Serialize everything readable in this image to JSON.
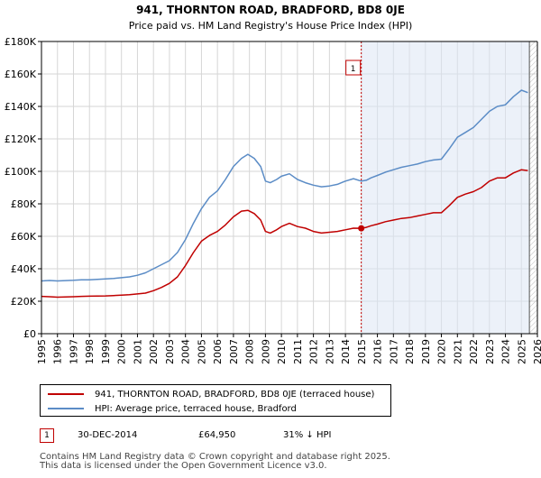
{
  "chart_data": {
    "type": "line",
    "title": "941, THORNTON ROAD, BRADFORD, BD8 0JE",
    "subtitle": "Price paid vs. HM Land Registry's House Price Index (HPI)",
    "xlim": [
      1995,
      2026
    ],
    "ylim": [
      0,
      180000
    ],
    "x_ticks": [
      "1995",
      "1996",
      "1997",
      "1998",
      "1999",
      "2000",
      "2001",
      "2002",
      "2003",
      "2004",
      "2005",
      "2006",
      "2007",
      "2008",
      "2009",
      "2010",
      "2011",
      "2012",
      "2013",
      "2014",
      "2015",
      "2016",
      "2017",
      "2018",
      "2019",
      "2020",
      "2021",
      "2022",
      "2023",
      "2024",
      "2025",
      "2026"
    ],
    "y_ticks": [
      {
        "value": 0,
        "label": "£0"
      },
      {
        "value": 20000,
        "label": "£20K"
      },
      {
        "value": 40000,
        "label": "£40K"
      },
      {
        "value": 60000,
        "label": "£60K"
      },
      {
        "value": 80000,
        "label": "£80K"
      },
      {
        "value": 100000,
        "label": "£100K"
      },
      {
        "value": 120000,
        "label": "£120K"
      },
      {
        "value": 140000,
        "label": "£140K"
      },
      {
        "value": 160000,
        "label": "£160K"
      },
      {
        "value": 180000,
        "label": "£180K"
      }
    ],
    "grid": true,
    "shaded_from": 2015,
    "hatched_from": 2025.5,
    "sale_marker": {
      "x": 2014.99,
      "label": "1",
      "value": 64950
    },
    "series": [
      {
        "name": "941, THORNTON ROAD, BRADFORD, BD8 0JE (terraced house)",
        "color": "#c00000",
        "points": [
          [
            1995,
            23000
          ],
          [
            1995.5,
            22800
          ],
          [
            1996,
            22500
          ],
          [
            1996.5,
            22600
          ],
          [
            1997,
            22800
          ],
          [
            1997.5,
            23000
          ],
          [
            1998,
            23100
          ],
          [
            1998.5,
            23200
          ],
          [
            1999,
            23300
          ],
          [
            1999.5,
            23500
          ],
          [
            2000,
            23800
          ],
          [
            2000.5,
            24000
          ],
          [
            2001,
            24500
          ],
          [
            2001.5,
            25000
          ],
          [
            2002,
            26500
          ],
          [
            2002.5,
            28500
          ],
          [
            2003,
            31000
          ],
          [
            2003.5,
            35000
          ],
          [
            2004,
            42000
          ],
          [
            2004.5,
            50000
          ],
          [
            2005,
            57000
          ],
          [
            2005.5,
            60500
          ],
          [
            2006,
            63000
          ],
          [
            2006.5,
            67000
          ],
          [
            2007,
            72000
          ],
          [
            2007.5,
            75500
          ],
          [
            2007.9,
            76000
          ],
          [
            2008.3,
            74000
          ],
          [
            2008.7,
            70000
          ],
          [
            2009,
            63000
          ],
          [
            2009.3,
            62000
          ],
          [
            2009.7,
            64000
          ],
          [
            2010,
            66000
          ],
          [
            2010.5,
            68000
          ],
          [
            2011,
            66000
          ],
          [
            2011.5,
            65000
          ],
          [
            2012,
            63000
          ],
          [
            2012.5,
            62000
          ],
          [
            2013,
            62500
          ],
          [
            2013.5,
            63000
          ],
          [
            2014,
            64000
          ],
          [
            2014.5,
            65000
          ],
          [
            2014.99,
            64950
          ],
          [
            2015.3,
            65500
          ],
          [
            2015.6,
            66500
          ],
          [
            2016,
            67500
          ],
          [
            2016.5,
            69000
          ],
          [
            2017,
            70000
          ],
          [
            2017.5,
            71000
          ],
          [
            2018,
            71500
          ],
          [
            2018.5,
            72500
          ],
          [
            2019,
            73500
          ],
          [
            2019.5,
            74500
          ],
          [
            2020,
            74500
          ],
          [
            2020.5,
            79000
          ],
          [
            2021,
            84000
          ],
          [
            2021.5,
            86000
          ],
          [
            2022,
            87500
          ],
          [
            2022.5,
            90000
          ],
          [
            2023,
            94000
          ],
          [
            2023.5,
            96000
          ],
          [
            2024,
            96000
          ],
          [
            2024.5,
            99000
          ],
          [
            2025,
            101000
          ],
          [
            2025.4,
            100500
          ]
        ]
      },
      {
        "name": "HPI: Average price, terraced house, Bradford",
        "color": "#5b8cc6",
        "points": [
          [
            1995,
            32500
          ],
          [
            1995.5,
            32800
          ],
          [
            1996,
            32500
          ],
          [
            1996.5,
            32700
          ],
          [
            1997,
            32900
          ],
          [
            1997.5,
            33200
          ],
          [
            1998,
            33200
          ],
          [
            1998.5,
            33500
          ],
          [
            1999,
            33700
          ],
          [
            1999.5,
            34000
          ],
          [
            2000,
            34500
          ],
          [
            2000.5,
            35000
          ],
          [
            2001,
            36000
          ],
          [
            2001.5,
            37500
          ],
          [
            2002,
            40000
          ],
          [
            2002.5,
            42500
          ],
          [
            2003,
            45000
          ],
          [
            2003.5,
            50000
          ],
          [
            2004,
            58000
          ],
          [
            2004.5,
            68000
          ],
          [
            2005,
            77000
          ],
          [
            2005.5,
            84000
          ],
          [
            2006,
            88000
          ],
          [
            2006.5,
            95000
          ],
          [
            2007,
            103000
          ],
          [
            2007.5,
            108000
          ],
          [
            2007.9,
            110500
          ],
          [
            2008.3,
            108000
          ],
          [
            2008.7,
            103000
          ],
          [
            2009,
            94000
          ],
          [
            2009.3,
            93000
          ],
          [
            2009.7,
            95000
          ],
          [
            2010,
            97000
          ],
          [
            2010.5,
            98500
          ],
          [
            2011,
            95000
          ],
          [
            2011.5,
            93000
          ],
          [
            2012,
            91500
          ],
          [
            2012.5,
            90500
          ],
          [
            2013,
            91000
          ],
          [
            2013.5,
            92000
          ],
          [
            2014,
            94000
          ],
          [
            2014.5,
            95500
          ],
          [
            2014.99,
            94000
          ],
          [
            2015.3,
            94500
          ],
          [
            2015.6,
            96000
          ],
          [
            2016,
            97500
          ],
          [
            2016.5,
            99500
          ],
          [
            2017,
            101000
          ],
          [
            2017.5,
            102500
          ],
          [
            2018,
            103500
          ],
          [
            2018.5,
            104500
          ],
          [
            2019,
            106000
          ],
          [
            2019.5,
            107000
          ],
          [
            2020,
            107500
          ],
          [
            2020.5,
            114000
          ],
          [
            2021,
            121000
          ],
          [
            2021.5,
            124000
          ],
          [
            2022,
            127000
          ],
          [
            2022.5,
            132000
          ],
          [
            2023,
            137000
          ],
          [
            2023.5,
            140000
          ],
          [
            2024,
            141000
          ],
          [
            2024.5,
            146000
          ],
          [
            2025,
            150000
          ],
          [
            2025.4,
            148500
          ]
        ]
      }
    ]
  },
  "legend": {
    "property_label": "941, THORNTON ROAD, BRADFORD, BD8 0JE (terraced house)",
    "hpi_label": "HPI: Average price, terraced house, Bradford"
  },
  "transaction": {
    "marker": "1",
    "date": "30-DEC-2014",
    "price": "£64,950",
    "hpi_diff": "31% ↓ HPI"
  },
  "footer": {
    "line1": "Contains HM Land Registry data © Crown copyright and database right 2025.",
    "line2": "This data is licensed under the Open Government Licence v3.0."
  },
  "colors": {
    "property": "#c00000",
    "hpi": "#5b8cc6",
    "shade": "#dde6f4",
    "grid": "#d6d6d6"
  }
}
